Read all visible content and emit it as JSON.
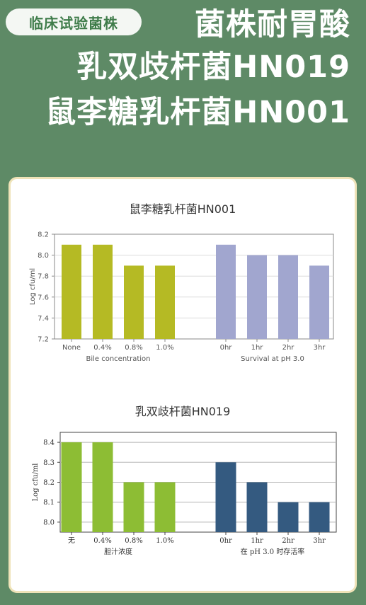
{
  "header": {
    "badge": "临床试验菌株",
    "line1": "菌株耐胃酸",
    "line2": "乳双歧杆菌HN019",
    "line3": "鼠李糖乳杆菌HN001"
  },
  "chart_data": [
    {
      "type": "bar",
      "title": "鼠李糖乳杆菌HN001",
      "ylabel": "Log cfu/ml",
      "ylim": [
        7.2,
        8.2
      ],
      "yticks": [
        "7.2",
        "7.4",
        "7.6",
        "7.8",
        "8.0",
        "8.2"
      ],
      "grid": true,
      "groups": [
        {
          "label": "Bile concentration",
          "categories": [
            "None",
            "0.4%",
            "0.8%",
            "1.0%"
          ],
          "values": [
            8.1,
            8.1,
            7.9,
            7.9
          ],
          "color": "#b5ba24"
        },
        {
          "label": "Survival at pH 3.0",
          "categories": [
            "0hr",
            "1hr",
            "2hr",
            "3hr"
          ],
          "values": [
            8.1,
            8.0,
            8.0,
            7.9
          ],
          "color": "#a1a6cf"
        }
      ]
    },
    {
      "type": "bar",
      "title": "乳双歧杆菌HN019",
      "ylabel": "Log cfu/ml",
      "ylim": [
        7.95,
        8.45
      ],
      "yticks": [
        "8.0",
        "8.1",
        "8.2",
        "8.3",
        "8.4"
      ],
      "grid": true,
      "groups": [
        {
          "label": "胆汁浓度",
          "categories": [
            "无",
            "0.4%",
            "0.8%",
            "1.0%"
          ],
          "values": [
            8.4,
            8.4,
            8.2,
            8.2
          ],
          "color": "#8dbd34"
        },
        {
          "label": "在 pH 3.0 时存活率",
          "categories": [
            "0hr",
            "1hr",
            "2hr",
            "3hr"
          ],
          "values": [
            8.3,
            8.2,
            8.1,
            8.1
          ],
          "color": "#345a80"
        }
      ]
    }
  ]
}
